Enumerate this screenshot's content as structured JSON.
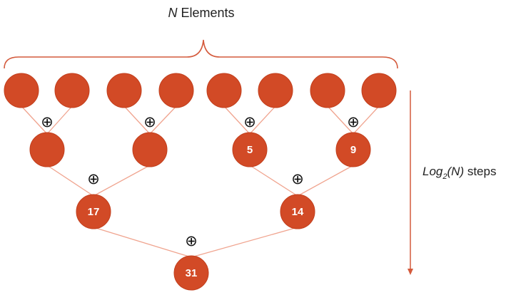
{
  "title": {
    "italic": "N",
    "rest": " Elements"
  },
  "steps_label": {
    "base": "Log",
    "sub": "2",
    "arg": "(N)",
    "rest": " steps"
  },
  "operator_symbol": "⊕",
  "colors": {
    "node": "#d24a26",
    "node_stroke": "#c23f1d",
    "edge": "#f0a48f",
    "brace": "#d45a3c",
    "arrow": "#d45a3c"
  },
  "levels": [
    {
      "nodes": [
        {
          "label": ""
        },
        {
          "label": ""
        },
        {
          "label": ""
        },
        {
          "label": ""
        },
        {
          "label": ""
        },
        {
          "label": ""
        },
        {
          "label": ""
        },
        {
          "label": ""
        }
      ]
    },
    {
      "nodes": [
        {
          "label": ""
        },
        {
          "label": ""
        },
        {
          "label": "5"
        },
        {
          "label": "9"
        }
      ]
    },
    {
      "nodes": [
        {
          "label": "17"
        },
        {
          "label": "14"
        }
      ]
    },
    {
      "nodes": [
        {
          "label": "31"
        }
      ]
    }
  ]
}
